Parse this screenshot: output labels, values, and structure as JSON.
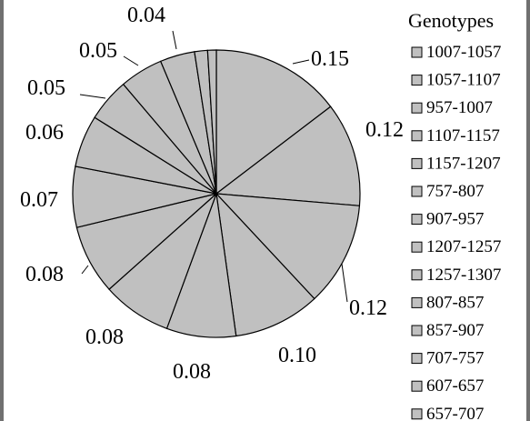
{
  "chart_data": {
    "type": "pie",
    "legend_title": "Genotypes",
    "legend_placement": "right",
    "slice_color": "#c0c0c0",
    "edge_color": "#000000",
    "slices": [
      {
        "label": "1007-1057",
        "value": 0.15,
        "value_label": "0.15"
      },
      {
        "label": "1057-1107",
        "value": 0.12,
        "value_label": "0.12"
      },
      {
        "label": "957-1007",
        "value": 0.12,
        "value_label": "0.12"
      },
      {
        "label": "1107-1157",
        "value": 0.1,
        "value_label": "0.10"
      },
      {
        "label": "1157-1207",
        "value": 0.08,
        "value_label": "0.08"
      },
      {
        "label": "757-807",
        "value": 0.08,
        "value_label": "0.08"
      },
      {
        "label": "907-957",
        "value": 0.08,
        "value_label": "0.08"
      },
      {
        "label": "1207-1257",
        "value": 0.07,
        "value_label": "0.07"
      },
      {
        "label": "1257-1307",
        "value": 0.06,
        "value_label": "0.06"
      },
      {
        "label": "807-857",
        "value": 0.05,
        "value_label": "0.05"
      },
      {
        "label": "857-907",
        "value": 0.05,
        "value_label": "0.05"
      },
      {
        "label": "707-757",
        "value": 0.04,
        "value_label": "0.04"
      },
      {
        "label": "607-657",
        "value": 0.015,
        "value_label": ""
      },
      {
        "label": "657-707",
        "value": 0.01,
        "value_label": ""
      }
    ]
  }
}
